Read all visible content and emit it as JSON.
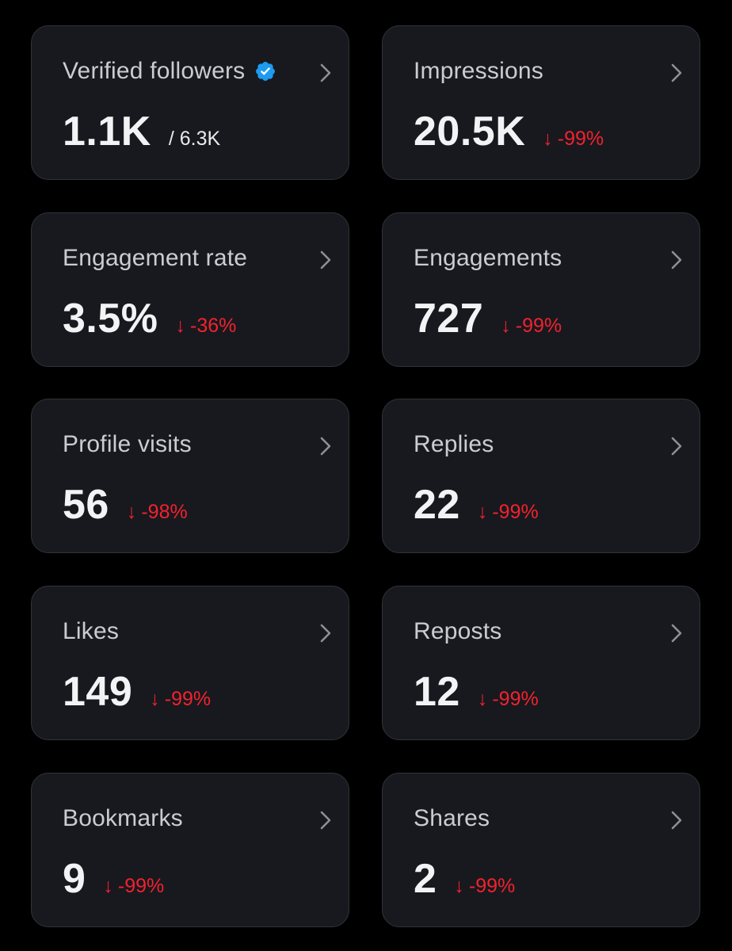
{
  "colors": {
    "background": "#000000",
    "card_background": "#17191e",
    "card_border": "#2f3338",
    "title": "#c9cdd1",
    "value": "#f2f3f5",
    "negative_change": "#f4212e",
    "verified_badge": "#1d9bf0"
  },
  "icons": {
    "change_arrow": "arrow-down-icon",
    "card_chevron": "chevron-right-icon",
    "verified": "verified-badge-icon"
  },
  "metrics": [
    {
      "title": "Verified followers",
      "value": "1.1K",
      "sub_value": "/ 6.3K"
    },
    {
      "title": "Impressions",
      "value": "20.5K",
      "change_arrow": "↓",
      "change": "-99%"
    },
    {
      "title": "Engagement rate",
      "value": "3.5%",
      "change_arrow": "↓",
      "change": "-36%"
    },
    {
      "title": "Engagements",
      "value": "727",
      "change_arrow": "↓",
      "change": "-99%"
    },
    {
      "title": "Profile visits",
      "value": "56",
      "change_arrow": "↓",
      "change": "-98%"
    },
    {
      "title": "Replies",
      "value": "22",
      "change_arrow": "↓",
      "change": "-99%"
    },
    {
      "title": "Likes",
      "value": "149",
      "change_arrow": "↓",
      "change": "-99%"
    },
    {
      "title": "Reposts",
      "value": "12",
      "change_arrow": "↓",
      "change": "-99%"
    },
    {
      "title": "Bookmarks",
      "value": "9",
      "change_arrow": "↓",
      "change": "-99%"
    },
    {
      "title": "Shares",
      "value": "2",
      "change_arrow": "↓",
      "change": "-99%"
    }
  ]
}
